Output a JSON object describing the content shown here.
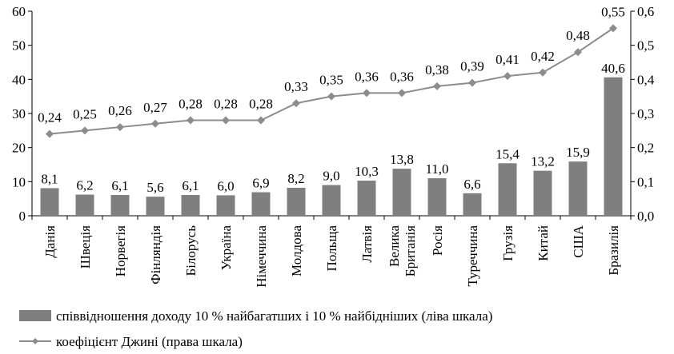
{
  "chart_data": {
    "type": "bar+line",
    "categories": [
      "Данія",
      "Швеція",
      "Норвегія",
      "Фінляндія",
      "Білорусь",
      "Україна",
      "Німеччина",
      "Молдова",
      "Польща",
      "Латвія",
      "Велика Британія",
      "Росія",
      "Туреччина",
      "Грузія",
      "Китай",
      "США",
      "Бразилія"
    ],
    "category_lines": [
      [
        "Данія"
      ],
      [
        "Швеція"
      ],
      [
        "Норвегія"
      ],
      [
        "Фінляндія"
      ],
      [
        "Білорусь"
      ],
      [
        "Україна"
      ],
      [
        "Німеччина"
      ],
      [
        "Молдова"
      ],
      [
        "Польща"
      ],
      [
        "Латвія"
      ],
      [
        "Велика",
        "Британія"
      ],
      [
        "Росія"
      ],
      [
        "Туреччина"
      ],
      [
        "Грузія"
      ],
      [
        "Китай"
      ],
      [
        "США"
      ],
      [
        "Бразилія"
      ]
    ],
    "series": [
      {
        "name": "співвідношення доходу 10 % найбагатших і 10 % найбідніших (ліва шкала)",
        "type": "bar",
        "axis": "left",
        "color": "#7f7f7f",
        "values": [
          8.1,
          6.2,
          6.1,
          5.6,
          6.1,
          6.0,
          6.9,
          8.2,
          9.0,
          10.3,
          13.8,
          11.0,
          6.6,
          15.4,
          13.2,
          15.9,
          40.6
        ],
        "labels": [
          "8,1",
          "6,2",
          "6,1",
          "5,6",
          "6,1",
          "6,0",
          "6,9",
          "8,2",
          "9,0",
          "10,3",
          "13,8",
          "11,0",
          "6,6",
          "15,4",
          "13,2",
          "15,9",
          "40,6"
        ]
      },
      {
        "name": "коефіцієнт Джині (права шкала)",
        "type": "line",
        "axis": "right",
        "color": "#8c8c8c",
        "values": [
          0.24,
          0.25,
          0.26,
          0.27,
          0.28,
          0.28,
          0.28,
          0.33,
          0.35,
          0.36,
          0.36,
          0.38,
          0.39,
          0.41,
          0.42,
          0.48,
          0.55
        ],
        "labels": [
          "0,24",
          "0,25",
          "0,26",
          "0,27",
          "0,28",
          "0,28",
          "0,28",
          "0,33",
          "0,35",
          "0,36",
          "0,36",
          "0,38",
          "0,39",
          "0,41",
          "0,42",
          "0,48",
          "0,55"
        ]
      }
    ],
    "y_left": {
      "ylim": [
        0,
        60
      ],
      "ticks": [
        "0",
        "10",
        "20",
        "30",
        "40",
        "50",
        "60"
      ]
    },
    "y_right": {
      "ylim": [
        0,
        0.6
      ],
      "ticks": [
        "0,0",
        "0,1",
        "0,2",
        "0,3",
        "0,4",
        "0,5",
        "0,6"
      ]
    },
    "grid": false,
    "legend_position": "bottom"
  }
}
